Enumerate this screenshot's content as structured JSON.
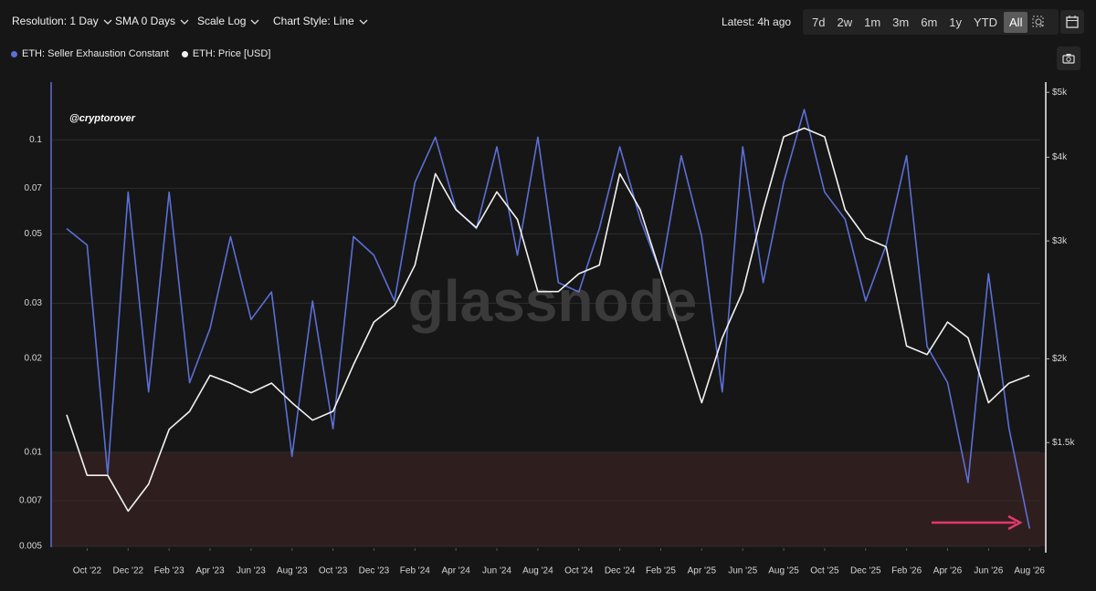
{
  "toolbar": {
    "dropdowns": [
      "Resolution: 1 Day",
      "SMA 0 Days",
      "Scale Log",
      "Chart Style: Line"
    ],
    "latest": "Latest: 4h ago",
    "ranges": [
      "7d",
      "2w",
      "1m",
      "3m",
      "6m",
      "1y",
      "YTD",
      "All"
    ],
    "active_range": "All"
  },
  "chart_data": {
    "type": "line",
    "annotation": "@cryptorover",
    "watermark": "glassnode",
    "x": [
      "2022-09",
      "2022-10",
      "2022-11",
      "2022-12",
      "2023-01",
      "2023-02",
      "2023-03",
      "2023-04",
      "2023-05",
      "2023-06",
      "2023-07",
      "2023-08",
      "2023-09",
      "2023-10",
      "2023-11",
      "2023-12",
      "2024-01",
      "2024-02",
      "2024-03",
      "2024-04",
      "2024-05",
      "2024-06",
      "2024-07",
      "2024-08",
      "2024-09",
      "2024-10",
      "2024-11",
      "2024-12",
      "2025-01",
      "2025-02",
      "2025-03",
      "2025-04",
      "2025-05",
      "2025-06",
      "2025-07",
      "2025-08",
      "2025-09",
      "2025-10",
      "2025-11",
      "2025-12",
      "2026-01",
      "2026-02",
      "2026-03",
      "2026-04",
      "2026-05",
      "2026-06",
      "2026-07",
      "2026-08"
    ],
    "xticks": [
      {
        "value": "2022-10",
        "label": "Oct '22"
      },
      {
        "value": "2022-12",
        "label": "Dec '22"
      },
      {
        "value": "2023-02",
        "label": "Feb '23"
      },
      {
        "value": "2023-04",
        "label": "Apr '23"
      },
      {
        "value": "2023-06",
        "label": "Jun '23"
      },
      {
        "value": "2023-08",
        "label": "Aug '23"
      },
      {
        "value": "2023-10",
        "label": "Oct '23"
      },
      {
        "value": "2023-12",
        "label": "Dec '23"
      },
      {
        "value": "2024-02",
        "label": "Feb '24"
      },
      {
        "value": "2024-04",
        "label": "Apr '24"
      },
      {
        "value": "2024-06",
        "label": "Jun '24"
      },
      {
        "value": "2024-08",
        "label": "Aug '24"
      },
      {
        "value": "2024-10",
        "label": "Oct '24"
      },
      {
        "value": "2024-12",
        "label": "Dec '24"
      },
      {
        "value": "2025-02",
        "label": "Feb '25"
      },
      {
        "value": "2025-04",
        "label": "Apr '25"
      },
      {
        "value": "2025-06",
        "label": "Jun '25"
      },
      {
        "value": "2025-08",
        "label": "Aug '25"
      },
      {
        "value": "2025-10",
        "label": "Oct '25"
      },
      {
        "value": "2025-12",
        "label": "Dec '25"
      },
      {
        "value": "2026-02",
        "label": "Feb '26"
      },
      {
        "value": "2026-04",
        "label": "Apr '26"
      },
      {
        "value": "2026-06",
        "label": "Jun '26"
      },
      {
        "value": "2026-08",
        "label": "Aug '26"
      }
    ],
    "log_scale": true,
    "grid": true,
    "ylim": [
      0.005,
      0.15
    ],
    "yticks": [
      0.005,
      0.007,
      0.01,
      0.02,
      0.03,
      0.05,
      0.07,
      0.1
    ],
    "y2lim": [
      1050,
      5130
    ],
    "y2ticks": [
      {
        "value": 1500,
        "label": "$1.5k"
      },
      {
        "value": 2000,
        "label": "$2k"
      },
      {
        "value": 3000,
        "label": "$3k"
      },
      {
        "value": 4000,
        "label": "$4k"
      },
      {
        "value": 5000,
        "label": "$5k"
      }
    ],
    "threshold_band": [
      0.005,
      0.01
    ],
    "series": [
      {
        "name": "ETH: Seller Exhaustion Constant",
        "color": "#5b6fd6",
        "values": [
          0.052,
          0.046,
          0.0085,
          0.068,
          0.0156,
          0.068,
          0.0167,
          0.0249,
          0.049,
          0.0266,
          0.0326,
          0.0097,
          0.0305,
          0.0119,
          0.049,
          0.0427,
          0.0305,
          0.073,
          0.102,
          0.06,
          0.052,
          0.095,
          0.0427,
          0.102,
          0.0349,
          0.0326,
          0.052,
          0.095,
          0.0557,
          0.0373,
          0.089,
          0.049,
          0.0156,
          0.095,
          0.0349,
          0.073,
          0.125,
          0.068,
          0.0557,
          0.0305,
          0.046,
          0.089,
          0.0218,
          0.0167,
          0.008,
          0.0373,
          0.0119,
          0.0057
        ]
      },
      {
        "name": "ETH: Price [USD]",
        "color": "#f2f2f2",
        "axis": "y2",
        "values": [
          1650,
          1340,
          1340,
          1185,
          1300,
          1570,
          1670,
          1890,
          1840,
          1780,
          1840,
          1720,
          1620,
          1670,
          1960,
          2270,
          2400,
          2760,
          3780,
          3340,
          3140,
          3550,
          3230,
          2520,
          2520,
          2680,
          2760,
          3780,
          3340,
          2680,
          2150,
          1720,
          2150,
          2520,
          3340,
          4290,
          4420,
          4290,
          3340,
          3030,
          2940,
          2090,
          2030,
          2270,
          2150,
          1720,
          1840,
          1890
        ]
      }
    ]
  }
}
